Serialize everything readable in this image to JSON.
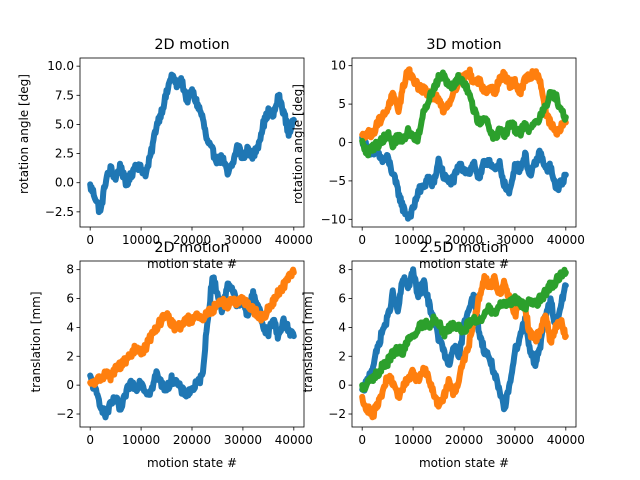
{
  "chart_data": [
    {
      "type": "scatter",
      "title": "2D motion",
      "xlabel": "motion state #",
      "ylabel": "rotation angle [deg]",
      "xlim": [
        -2000,
        42000
      ],
      "ylim": [
        -3.8,
        10.7
      ],
      "xticks": [
        0,
        10000,
        20000,
        30000,
        40000
      ],
      "xtick_labels": [
        "0",
        "10000",
        "20000",
        "30000",
        "40000"
      ],
      "yticks": [
        -2.5,
        0,
        2.5,
        5,
        7.5,
        10
      ],
      "ytick_labels": [
        "−2.5",
        "0.0",
        "2.5",
        "5.0",
        "7.5",
        "10.0"
      ],
      "series": [
        {
          "color": "#1f77b4",
          "x": [
            0,
            1000,
            2000,
            3000,
            4000,
            5000,
            6000,
            7000,
            8000,
            9000,
            10000,
            11000,
            12000,
            13000,
            14000,
            15000,
            16000,
            17000,
            18000,
            19000,
            20000,
            21000,
            22000,
            23000,
            24000,
            25000,
            26000,
            27000,
            28000,
            29000,
            30000,
            31000,
            32000,
            33000,
            34000,
            35000,
            36000,
            37000,
            38000,
            39000,
            40000
          ],
          "y": [
            -0.3,
            -1.2,
            -2.6,
            0.1,
            1.2,
            0.4,
            1.5,
            -0.2,
            0.6,
            1.6,
            1.2,
            0.8,
            2.6,
            4.9,
            6.1,
            7.6,
            9.3,
            8.4,
            8.7,
            7.1,
            7.8,
            6.8,
            5.7,
            3.5,
            2.7,
            1.9,
            2.1,
            0.7,
            1.6,
            3.3,
            2.0,
            2.9,
            2.2,
            3.3,
            5.0,
            6.1,
            5.8,
            7.4,
            6.1,
            4.2,
            5.4
          ]
        }
      ]
    },
    {
      "type": "scatter",
      "title": "3D motion",
      "xlabel": "motion state #",
      "ylabel": "rotation angle [deg]",
      "xlim": [
        -2000,
        42000
      ],
      "ylim": [
        -11,
        11
      ],
      "xticks": [
        0,
        10000,
        20000,
        30000,
        40000
      ],
      "xtick_labels": [
        "0",
        "10000",
        "20000",
        "30000",
        "40000"
      ],
      "yticks": [
        -10,
        -5,
        0,
        5,
        10
      ],
      "ytick_labels": [
        "−10",
        "−5",
        "0",
        "5",
        "10"
      ],
      "series": [
        {
          "color": "#1f77b4",
          "x": [
            0,
            1000,
            2000,
            3000,
            4000,
            5000,
            6000,
            7000,
            8000,
            9000,
            10000,
            11000,
            12000,
            13000,
            14000,
            15000,
            16000,
            17000,
            18000,
            19000,
            20000,
            21000,
            22000,
            23000,
            24000,
            25000,
            26000,
            27000,
            28000,
            29000,
            30000,
            31000,
            32000,
            33000,
            34000,
            35000,
            36000,
            37000,
            38000,
            39000,
            40000
          ],
          "y": [
            0.4,
            -0.6,
            -1.8,
            -1.2,
            -2.4,
            -2.0,
            -4.0,
            -6.2,
            -8.5,
            -9.6,
            -8.8,
            -6.3,
            -5.9,
            -4.5,
            -5.6,
            -2.3,
            -4.4,
            -5.1,
            -4.8,
            -3.1,
            -3.4,
            -3.9,
            -2.7,
            -4.9,
            -2.6,
            -2.3,
            -3.8,
            -2.9,
            -5.6,
            -6.6,
            -2.9,
            -3.5,
            -1.6,
            -4.5,
            -2.7,
            -1.3,
            -3.6,
            -3.2,
            -6.1,
            -5.4,
            -4.2
          ]
        },
        {
          "color": "#ff7f0e",
          "x": [
            0,
            1000,
            2000,
            3000,
            4000,
            5000,
            6000,
            7000,
            8000,
            9000,
            10000,
            11000,
            12000,
            13000,
            14000,
            15000,
            16000,
            17000,
            18000,
            19000,
            20000,
            21000,
            22000,
            23000,
            24000,
            25000,
            26000,
            27000,
            28000,
            29000,
            30000,
            31000,
            32000,
            33000,
            34000,
            35000,
            36000,
            37000,
            38000,
            39000,
            40000
          ],
          "y": [
            0.7,
            1.4,
            1.0,
            2.6,
            3.3,
            4.5,
            6.2,
            4.0,
            7.0,
            9.6,
            8.2,
            7.3,
            6.9,
            6.2,
            6.0,
            5.5,
            4.3,
            5.1,
            6.7,
            8.2,
            8.4,
            9.2,
            7.8,
            8.1,
            6.8,
            7.2,
            6.5,
            8.3,
            8.8,
            7.5,
            7.9,
            6.4,
            8.1,
            8.7,
            9.1,
            8.1,
            4.1,
            2.4,
            1.3,
            1.9,
            2.6
          ]
        },
        {
          "color": "#2ca02c",
          "x": [
            0,
            1000,
            2000,
            3000,
            4000,
            5000,
            6000,
            7000,
            8000,
            9000,
            10000,
            11000,
            12000,
            13000,
            14000,
            15000,
            16000,
            17000,
            18000,
            19000,
            20000,
            21000,
            22000,
            23000,
            24000,
            25000,
            26000,
            27000,
            28000,
            29000,
            30000,
            31000,
            32000,
            33000,
            34000,
            35000,
            36000,
            37000,
            38000,
            39000,
            40000
          ],
          "y": [
            -0.1,
            -1.4,
            -0.6,
            -0.3,
            0.4,
            1.2,
            -0.2,
            0.7,
            0.2,
            1.5,
            0.8,
            0.6,
            3.6,
            5.5,
            7.0,
            8.4,
            8.9,
            7.4,
            7.6,
            8.6,
            7.9,
            6.3,
            4.1,
            2.6,
            3.5,
            1.7,
            0.6,
            1.4,
            0.9,
            2.5,
            1.8,
            1.2,
            2.4,
            1.5,
            2.8,
            3.3,
            4.6,
            6.4,
            6.0,
            4.5,
            3.3
          ]
        }
      ]
    },
    {
      "type": "scatter",
      "title": "2D motion",
      "xlabel": "motion state #",
      "ylabel": "translation [mm]",
      "xlim": [
        -2000,
        42000
      ],
      "ylim": [
        -2.9,
        8.6
      ],
      "xticks": [
        0,
        10000,
        20000,
        30000,
        40000
      ],
      "xtick_labels": [
        "0",
        "10000",
        "20000",
        "30000",
        "40000"
      ],
      "yticks": [
        -2,
        0,
        2,
        4,
        6,
        8
      ],
      "ytick_labels": [
        "−2",
        "0",
        "2",
        "4",
        "6",
        "8"
      ],
      "series": [
        {
          "color": "#1f77b4",
          "x": [
            0,
            1000,
            2000,
            3000,
            4000,
            5000,
            6000,
            7000,
            8000,
            9000,
            10000,
            11000,
            12000,
            13000,
            14000,
            15000,
            16000,
            17000,
            18000,
            19000,
            20000,
            21000,
            22000,
            23000,
            24000,
            25000,
            26000,
            27000,
            28000,
            29000,
            30000,
            31000,
            32000,
            33000,
            34000,
            35000,
            36000,
            37000,
            38000,
            39000,
            40000
          ],
          "y": [
            0.5,
            -0.4,
            -1.3,
            -2.1,
            -1.4,
            -0.9,
            -1.8,
            -0.6,
            0.2,
            -0.2,
            0.3,
            -0.5,
            -0.4,
            0.8,
            0.1,
            -0.3,
            0.4,
            0.2,
            -0.4,
            -0.6,
            -0.3,
            0.1,
            0.6,
            4.2,
            7.5,
            6.4,
            5.1,
            7.1,
            6.6,
            5.4,
            5.9,
            4.8,
            6.4,
            5.5,
            4.0,
            3.6,
            4.7,
            3.3,
            4.5,
            3.8,
            3.4
          ]
        },
        {
          "color": "#ff7f0e",
          "x": [
            0,
            1000,
            2000,
            3000,
            4000,
            5000,
            6000,
            7000,
            8000,
            9000,
            10000,
            11000,
            12000,
            13000,
            14000,
            15000,
            16000,
            17000,
            18000,
            19000,
            20000,
            21000,
            22000,
            23000,
            24000,
            25000,
            26000,
            27000,
            28000,
            29000,
            30000,
            31000,
            32000,
            33000,
            34000,
            35000,
            36000,
            37000,
            38000,
            39000,
            40000
          ],
          "y": [
            0.0,
            0.2,
            0.5,
            0.8,
            0.6,
            1.1,
            1.4,
            1.7,
            2.1,
            2.6,
            2.3,
            2.7,
            3.4,
            4.0,
            4.5,
            4.8,
            4.3,
            3.9,
            4.2,
            4.6,
            4.4,
            4.8,
            4.5,
            5.0,
            5.2,
            5.6,
            5.8,
            5.5,
            6.0,
            5.7,
            5.9,
            5.5,
            5.2,
            4.9,
            4.6,
            5.3,
            5.8,
            6.4,
            6.9,
            7.4,
            7.8
          ]
        }
      ]
    },
    {
      "type": "scatter",
      "title": "2.5D motion",
      "xlabel": "motion state #",
      "ylabel": "translation [mm]",
      "xlim": [
        -2000,
        42000
      ],
      "ylim": [
        -2.9,
        8.6
      ],
      "xticks": [
        0,
        10000,
        20000,
        30000,
        40000
      ],
      "xtick_labels": [
        "0",
        "10000",
        "20000",
        "30000",
        "40000"
      ],
      "yticks": [
        -2,
        0,
        2,
        4,
        6,
        8
      ],
      "ytick_labels": [
        "−2",
        "0",
        "2",
        "4",
        "6",
        "8"
      ],
      "series": [
        {
          "color": "#1f77b4",
          "x": [
            0,
            1000,
            2000,
            3000,
            4000,
            5000,
            6000,
            7000,
            8000,
            9000,
            10000,
            11000,
            12000,
            13000,
            14000,
            15000,
            16000,
            17000,
            18000,
            19000,
            20000,
            21000,
            22000,
            23000,
            24000,
            25000,
            26000,
            27000,
            28000,
            29000,
            30000,
            31000,
            32000,
            33000,
            34000,
            35000,
            36000,
            37000,
            38000,
            39000,
            40000
          ],
          "y": [
            -0.5,
            0.3,
            1.2,
            2.5,
            3.8,
            4.6,
            6.3,
            5.1,
            7.4,
            6.8,
            7.9,
            6.1,
            7.2,
            5.8,
            4.6,
            3.3,
            2.4,
            1.2,
            2.8,
            1.8,
            4.2,
            5.5,
            6.1,
            3.6,
            2.4,
            1.9,
            0.8,
            -0.6,
            -1.7,
            0.2,
            2.3,
            3.4,
            4.6,
            2.4,
            1.5,
            2.7,
            4.8,
            5.9,
            4.1,
            5.5,
            6.9
          ]
        },
        {
          "color": "#ff7f0e",
          "x": [
            0,
            1000,
            2000,
            3000,
            4000,
            5000,
            6000,
            7000,
            8000,
            9000,
            10000,
            11000,
            12000,
            13000,
            14000,
            15000,
            16000,
            17000,
            18000,
            19000,
            20000,
            21000,
            22000,
            23000,
            24000,
            25000,
            26000,
            27000,
            28000,
            29000,
            30000,
            31000,
            32000,
            33000,
            34000,
            35000,
            36000,
            37000,
            38000,
            39000,
            40000
          ],
          "y": [
            -1.0,
            -1.6,
            -2.1,
            -1.4,
            -0.5,
            0.6,
            0.1,
            -0.8,
            -0.2,
            0.5,
            0.9,
            0.3,
            1.2,
            0.6,
            -0.6,
            -1.3,
            -0.8,
            0.2,
            -0.6,
            0.4,
            1.8,
            2.9,
            4.3,
            6.1,
            7.4,
            6.9,
            7.3,
            6.4,
            7.1,
            5.8,
            4.9,
            5.6,
            5.1,
            3.6,
            3.2,
            3.7,
            4.8,
            3.1,
            3.9,
            4.4,
            3.4
          ]
        },
        {
          "color": "#2ca02c",
          "x": [
            0,
            1000,
            2000,
            3000,
            4000,
            5000,
            6000,
            7000,
            8000,
            9000,
            10000,
            11000,
            12000,
            13000,
            14000,
            15000,
            16000,
            17000,
            18000,
            19000,
            20000,
            21000,
            22000,
            23000,
            24000,
            25000,
            26000,
            27000,
            28000,
            29000,
            30000,
            31000,
            32000,
            33000,
            34000,
            35000,
            36000,
            37000,
            38000,
            39000,
            40000
          ],
          "y": [
            -0.2,
            0.1,
            0.4,
            0.8,
            1.3,
            1.6,
            2.2,
            2.5,
            2.3,
            3.0,
            3.4,
            3.9,
            4.3,
            4.1,
            4.6,
            4.3,
            3.6,
            3.9,
            4.2,
            4.0,
            3.8,
            4.3,
            4.6,
            4.3,
            4.9,
            5.3,
            5.1,
            5.5,
            5.8,
            5.6,
            5.9,
            5.7,
            5.4,
            5.8,
            5.6,
            6.0,
            6.4,
            6.9,
            7.2,
            7.6,
            7.8
          ]
        }
      ]
    }
  ]
}
